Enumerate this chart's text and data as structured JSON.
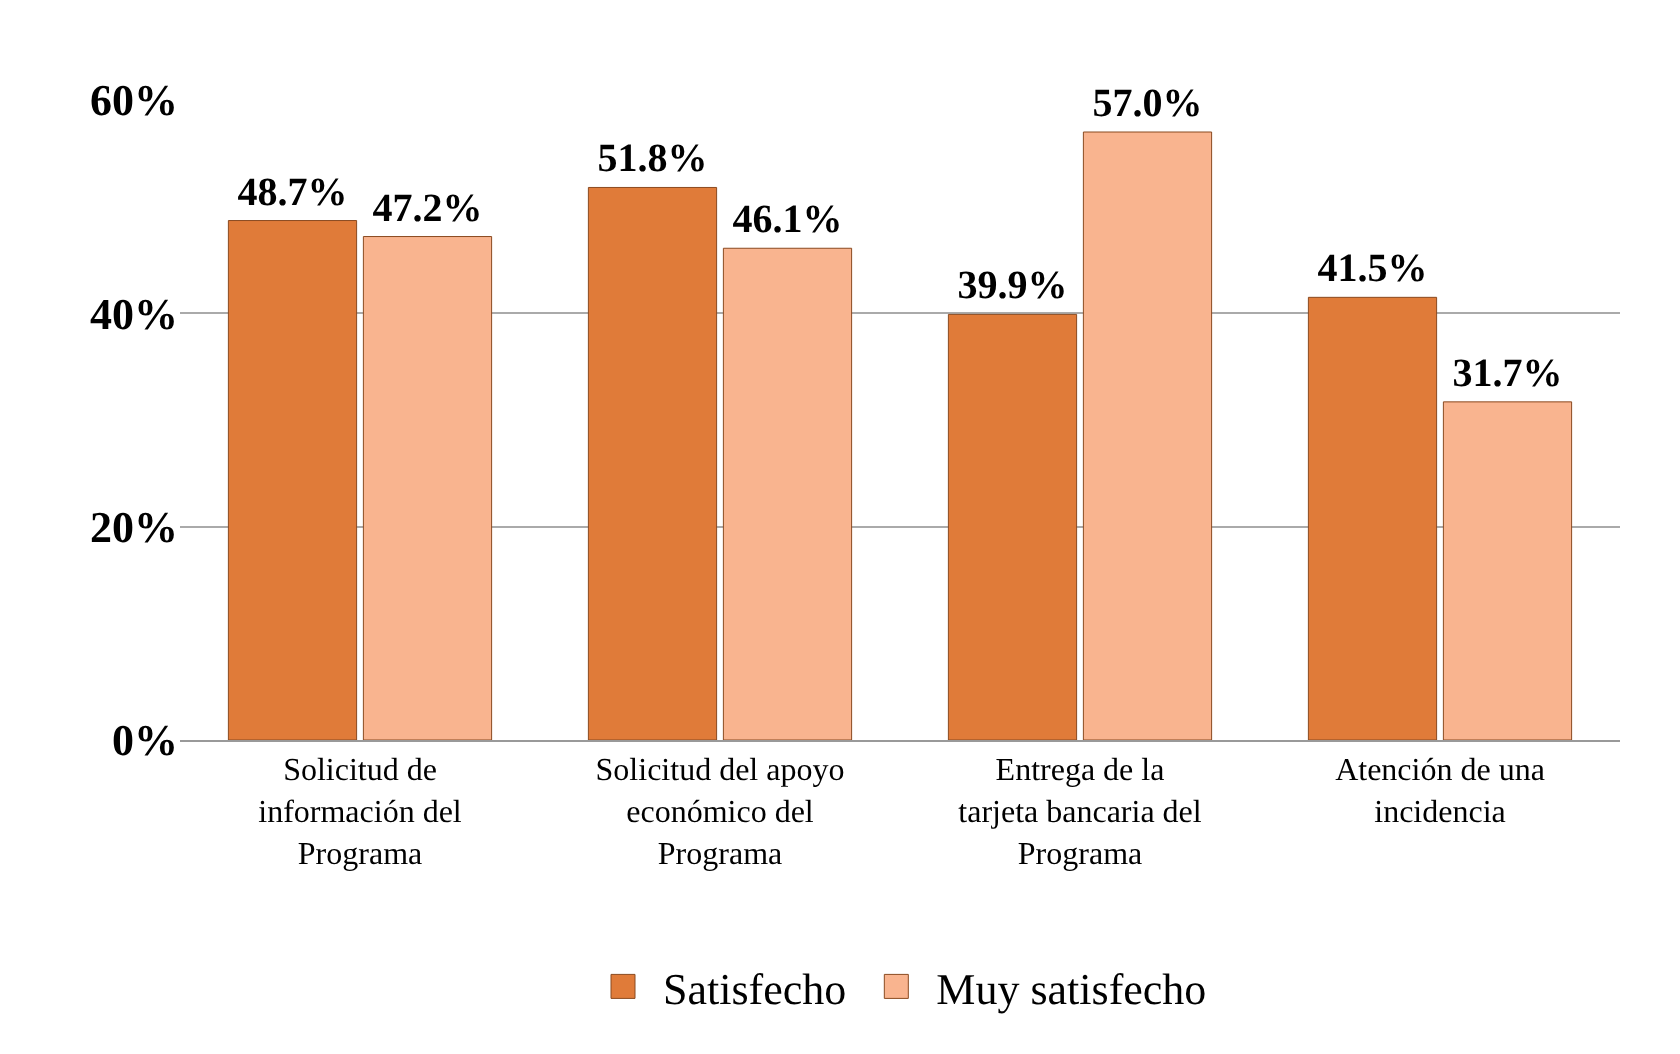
{
  "chart_data": {
    "type": "bar",
    "categories": [
      "Solicitud de información del Programa",
      "Solicitud del apoyo económico del Programa",
      "Entrega de la tarjeta bancaria del Programa",
      "Atención de una incidencia"
    ],
    "series": [
      {
        "name": "Satisfecho",
        "color": "#e07b39",
        "values": [
          48.7,
          51.8,
          39.9,
          41.5
        ],
        "value_labels": [
          "48.7%",
          "51.8%",
          "39.9%",
          "41.5%"
        ]
      },
      {
        "name": "Muy satisfecho",
        "color": "#f9b48f",
        "values": [
          47.2,
          46.1,
          57.0,
          31.7
        ],
        "value_labels": [
          "47.2%",
          "46.1%",
          "57.0%",
          "31.7%"
        ]
      }
    ],
    "ylim": [
      0,
      60
    ],
    "yticks": [
      {
        "value": 0,
        "label": "0%"
      },
      {
        "value": 20,
        "label": "20%"
      },
      {
        "value": 40,
        "label": "40%"
      },
      {
        "value": 60,
        "label": "60%"
      }
    ],
    "grid": "y",
    "legend": "bottom"
  }
}
